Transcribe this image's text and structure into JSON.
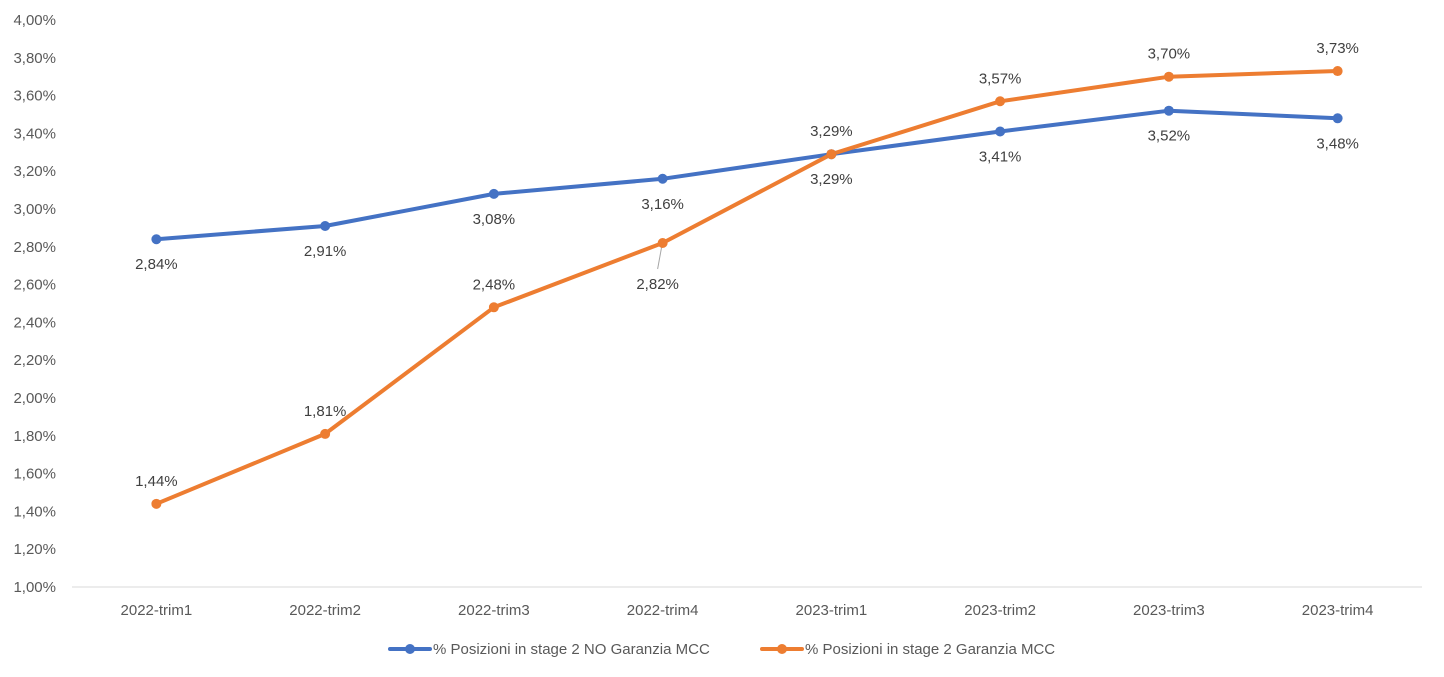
{
  "chart_data": {
    "type": "line",
    "title": "",
    "xlabel": "",
    "ylabel": "",
    "categories": [
      "2022-trim1",
      "2022-trim2",
      "2022-trim3",
      "2022-trim4",
      "2023-trim1",
      "2023-trim2",
      "2023-trim3",
      "2023-trim4"
    ],
    "ylim": [
      1.0,
      4.0
    ],
    "y_step": 0.2,
    "y_tick_labels": [
      "1,00%",
      "1,20%",
      "1,40%",
      "1,60%",
      "1,80%",
      "2,00%",
      "2,20%",
      "2,40%",
      "2,60%",
      "2,80%",
      "3,00%",
      "3,20%",
      "3,40%",
      "3,60%",
      "3,80%",
      "4,00%"
    ],
    "grid": false,
    "legend_position": "bottom",
    "series": [
      {
        "name": "% Posizioni in stage 2 NO Garanzia MCC",
        "color": "#4472C4",
        "values": [
          2.84,
          2.91,
          3.08,
          3.16,
          3.29,
          3.41,
          3.52,
          3.48
        ],
        "labels": [
          "2,84%",
          "2,91%",
          "3,08%",
          "3,16%",
          "3,29%",
          "3,41%",
          "3,52%",
          "3,48%"
        ],
        "label_position": "below"
      },
      {
        "name": "% Posizioni in stage 2 Garanzia MCC",
        "color": "#ED7D31",
        "values": [
          1.44,
          1.81,
          2.48,
          2.82,
          3.29,
          3.57,
          3.7,
          3.73
        ],
        "labels": [
          "1,44%",
          "1,81%",
          "2,48%",
          "2,82%",
          "3,29%",
          "3,57%",
          "3,70%",
          "3,73%"
        ],
        "label_position": "above"
      }
    ]
  }
}
